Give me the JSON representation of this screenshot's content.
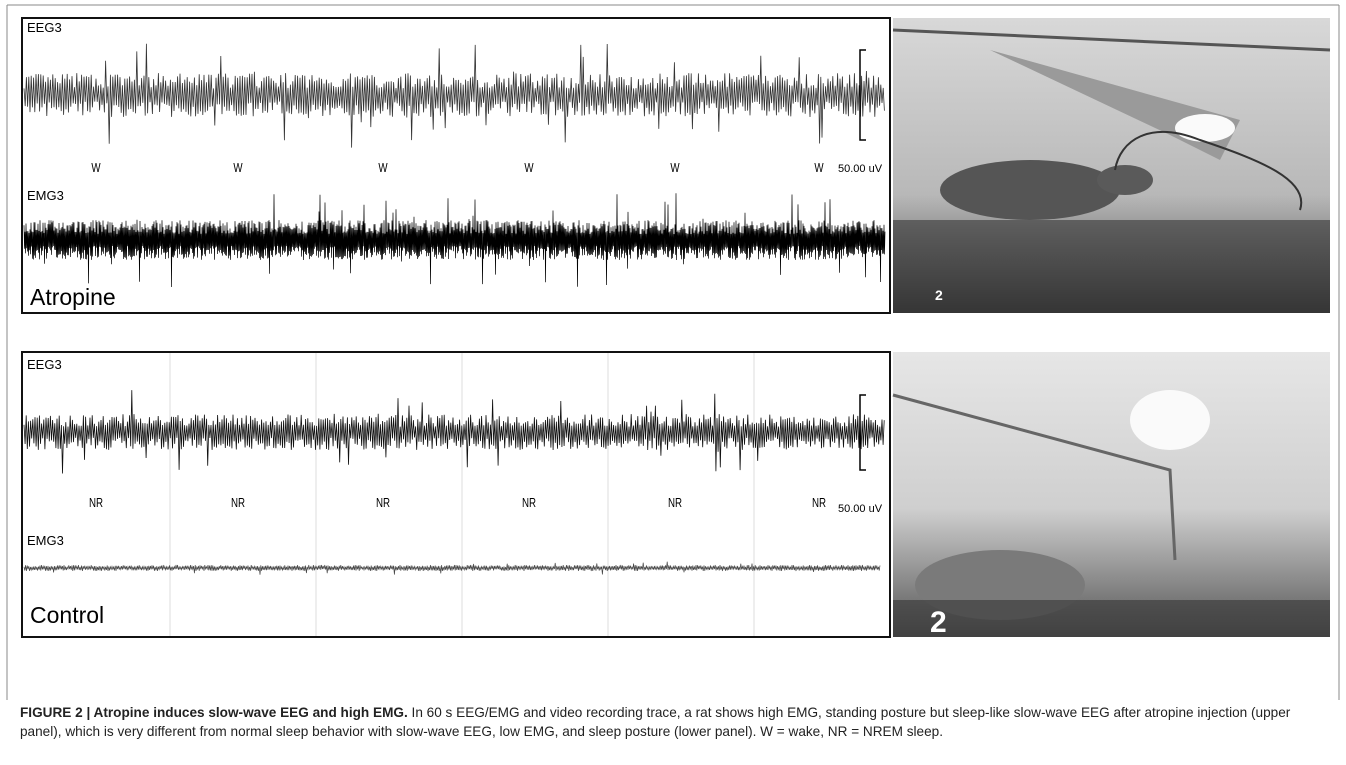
{
  "panels": [
    {
      "eeg_label": "EEG3",
      "stage_labels": [
        "W",
        "W",
        "W",
        "W",
        "W",
        "W"
      ],
      "scale_label": "50.00 uV",
      "emg_label": "EMG3",
      "condition": "Atropine",
      "photo_label": "2"
    },
    {
      "eeg_label": "EEG3",
      "stage_labels": [
        "NR",
        "NR",
        "NR",
        "NR",
        "NR",
        "NR"
      ],
      "scale_label": "50.00 uV",
      "emg_label": "EMG3",
      "condition": "Control",
      "photo_label": "2"
    }
  ],
  "caption": {
    "title": "FIGURE 2 | Atropine induces slow-wave EEG and high EMG.",
    "text": "In 60 s EEG/EMG and video recording trace, a rat shows high EMG, standing posture but sleep-like slow-wave EEG after atropine injection (upper panel), which is very different from normal sleep behavior with slow-wave EEG, low EMG, and sleep posture (lower panel). W = wake, NR = NREM sleep."
  }
}
